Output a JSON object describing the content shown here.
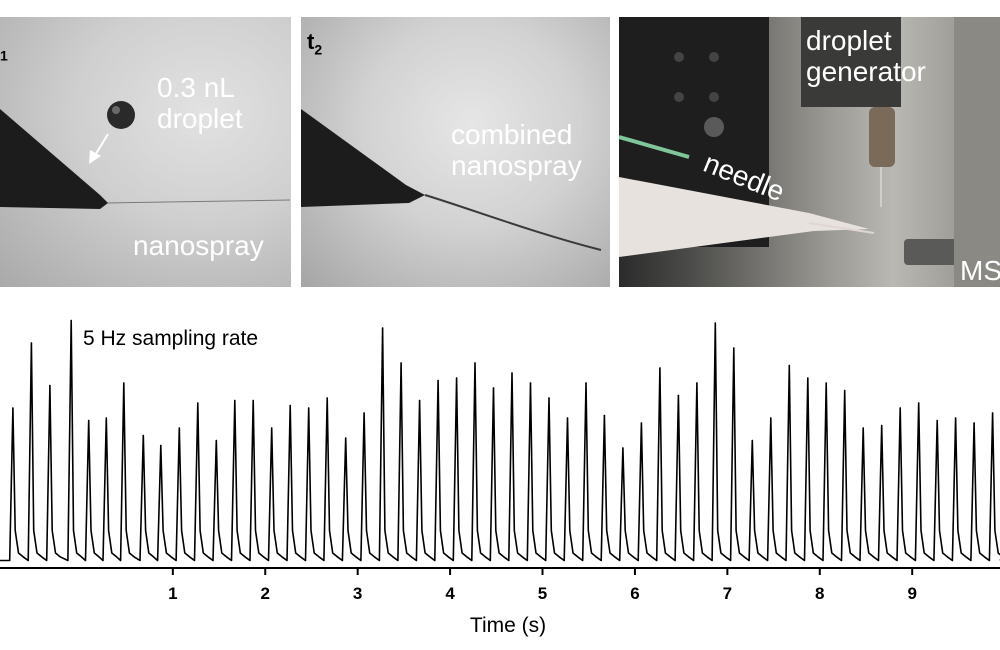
{
  "panels": {
    "p1": {
      "time_prefix": "",
      "time_sub": "1",
      "label_top": "0.3 nL\ndroplet",
      "label_bottom": "nanospray"
    },
    "p2": {
      "time_prefix": "t",
      "time_sub": "2",
      "label": "combined\nnanospray"
    },
    "p3": {
      "label_generator": "droplet\ngenerator",
      "label_needle": "needle",
      "label_ms": "MS"
    }
  },
  "chart_data": {
    "type": "line",
    "title": "",
    "annotation": "5 Hz sampling rate",
    "xlabel": "Time (s)",
    "ylabel": "",
    "xlim": [
      -0.87,
      9.95
    ],
    "ylim": [
      0,
      1
    ],
    "x_ticks": [
      1,
      2,
      3,
      4,
      5,
      6,
      7,
      8,
      9
    ],
    "x_tick_labels": [
      "1",
      "2",
      "3",
      "4",
      "5",
      "6",
      "7",
      "8",
      "9"
    ],
    "peak_times": [
      -0.73,
      -0.53,
      -0.33,
      -0.1,
      0.09,
      0.28,
      0.47,
      0.68,
      0.87,
      1.07,
      1.27,
      1.47,
      1.67,
      1.87,
      2.07,
      2.27,
      2.47,
      2.67,
      2.87,
      3.07,
      3.27,
      3.47,
      3.67,
      3.87,
      4.07,
      4.27,
      4.47,
      4.67,
      4.87,
      5.07,
      5.27,
      5.47,
      5.67,
      5.87,
      6.07,
      6.27,
      6.47,
      6.67,
      6.87,
      7.07,
      7.27,
      7.47,
      7.67,
      7.87,
      8.07,
      8.27,
      8.47,
      8.67,
      8.87,
      9.07,
      9.27,
      9.47,
      9.67,
      9.87
    ],
    "peak_heights": [
      0.64,
      0.9,
      0.73,
      0.99,
      0.59,
      0.6,
      0.74,
      0.53,
      0.49,
      0.56,
      0.66,
      0.51,
      0.67,
      0.67,
      0.56,
      0.65,
      0.64,
      0.68,
      0.52,
      0.62,
      0.96,
      0.82,
      0.67,
      0.75,
      0.76,
      0.82,
      0.72,
      0.78,
      0.74,
      0.68,
      0.6,
      0.74,
      0.61,
      0.48,
      0.58,
      0.8,
      0.69,
      0.74,
      0.98,
      0.88,
      0.51,
      0.6,
      0.81,
      0.76,
      0.74,
      0.71,
      0.56,
      0.57,
      0.64,
      0.66,
      0.59,
      0.6,
      0.58,
      0.62
    ],
    "baseline": 0.03
  },
  "colors": {
    "line": "#000000",
    "photo_label": "#ffffff"
  }
}
